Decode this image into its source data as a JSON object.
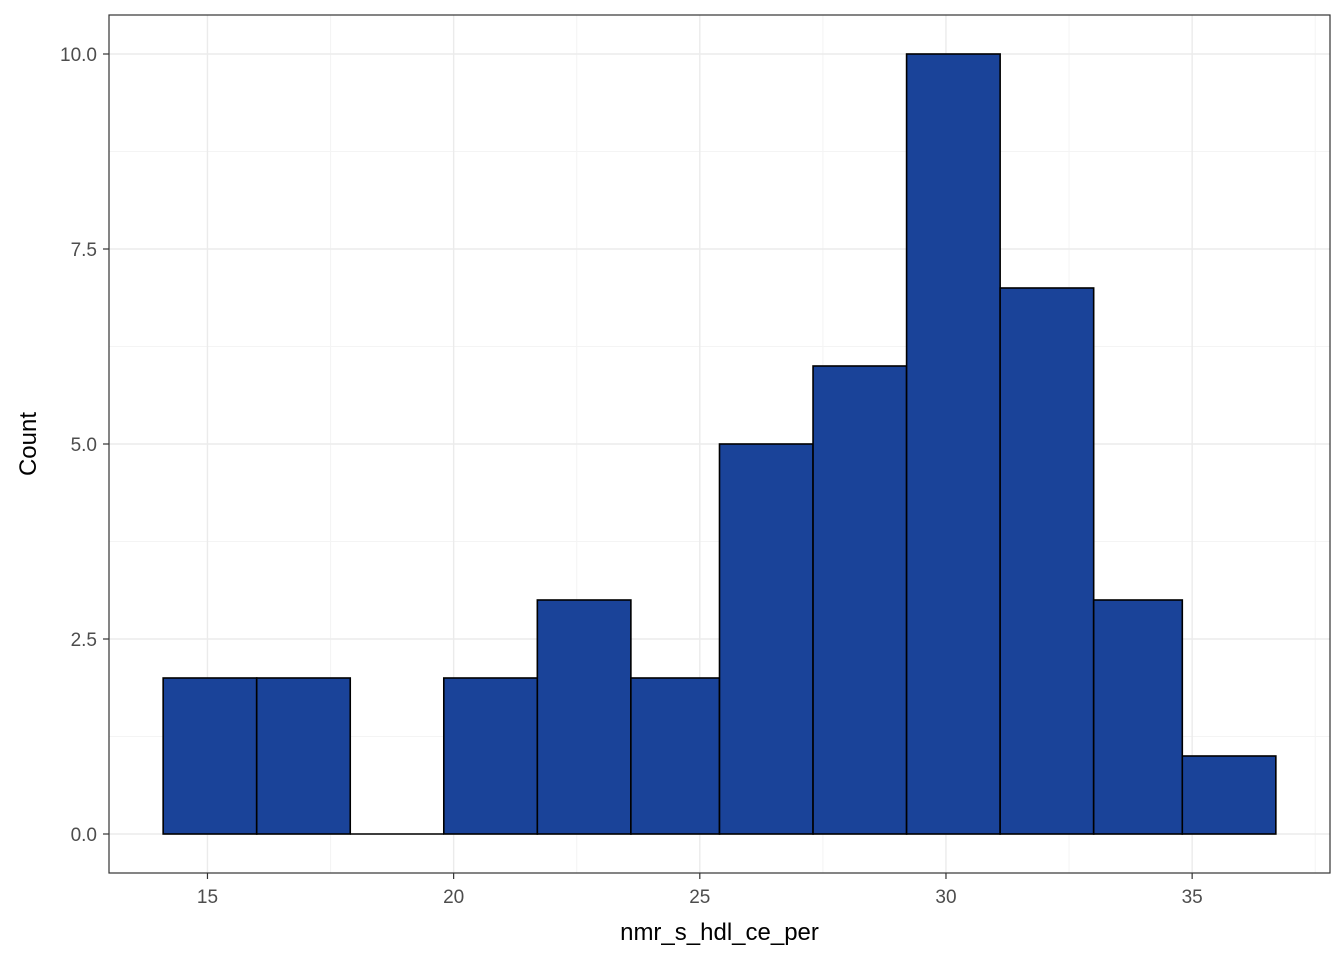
{
  "chart_data": {
    "type": "bar",
    "subtype": "histogram",
    "title": "",
    "xlabel": "nmr_s_hdl_ce_per",
    "ylabel": "Count",
    "xlim": [
      13.0,
      37.8
    ],
    "ylim": [
      -0.5,
      10.5
    ],
    "x_ticks": [
      15,
      20,
      25,
      30,
      35
    ],
    "x_tick_labels": [
      "15",
      "20",
      "25",
      "30",
      "35"
    ],
    "y_ticks": [
      0,
      2.5,
      5,
      7.5,
      10
    ],
    "y_tick_labels": [
      "0.0",
      "2.5",
      "5.0",
      "7.5",
      "10.0"
    ],
    "grid": true,
    "bins": [
      {
        "start": 14.1,
        "end": 16.0,
        "count": 2
      },
      {
        "start": 16.0,
        "end": 17.9,
        "count": 2
      },
      {
        "start": 17.9,
        "end": 19.8,
        "count": 0
      },
      {
        "start": 19.8,
        "end": 21.7,
        "count": 2
      },
      {
        "start": 21.7,
        "end": 23.6,
        "count": 3
      },
      {
        "start": 23.6,
        "end": 25.4,
        "count": 2
      },
      {
        "start": 25.4,
        "end": 27.3,
        "count": 5
      },
      {
        "start": 27.3,
        "end": 29.2,
        "count": 6
      },
      {
        "start": 29.2,
        "end": 31.1,
        "count": 10
      },
      {
        "start": 31.1,
        "end": 33.0,
        "count": 7
      },
      {
        "start": 33.0,
        "end": 34.8,
        "count": 3
      },
      {
        "start": 34.8,
        "end": 36.7,
        "count": 1
      }
    ],
    "colors": {
      "bar_fill": "#1a4399",
      "bar_stroke": "#000000",
      "grid_major": "#ebebeb",
      "grid_minor": "#f4f4f4",
      "panel_border": "#333333"
    }
  }
}
